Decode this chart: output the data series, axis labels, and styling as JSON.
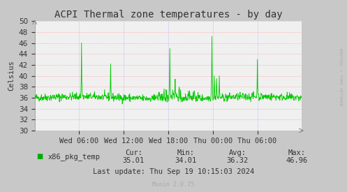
{
  "title": "ACPI Thermal zone temperatures - by day",
  "ylabel": "Celsius",
  "ylim": [
    30,
    50
  ],
  "yticks": [
    30,
    32,
    34,
    36,
    38,
    40,
    42,
    44,
    46,
    48,
    50
  ],
  "fig_bg_color": "#c8c8c8",
  "plot_bg_color": "#f0f0f0",
  "grid_color_h": "#ff9999",
  "grid_color_v": "#aaaaff",
  "line_color": "#00cc00",
  "legend_color": "#00aa00",
  "legend_label": "x86_pkg_temp",
  "xtick_labels": [
    "Wed 06:00",
    "Wed 12:00",
    "Wed 18:00",
    "Thu 00:00",
    "Thu 06:00"
  ],
  "xtick_positions": [
    0.1667,
    0.3333,
    0.5,
    0.6667,
    0.8333
  ],
  "stats_cur": "35.01",
  "stats_min": "34.01",
  "stats_avg": "36.32",
  "stats_max": "46.96",
  "last_update": "Last update: Thu Sep 19 10:15:03 2024",
  "watermark": "Munin 2.0.75",
  "rrdtool_text": "RRDTOOL / TOBI OETIKER",
  "title_fontsize": 10,
  "axis_fontsize": 7.5,
  "stats_fontsize": 7.5
}
